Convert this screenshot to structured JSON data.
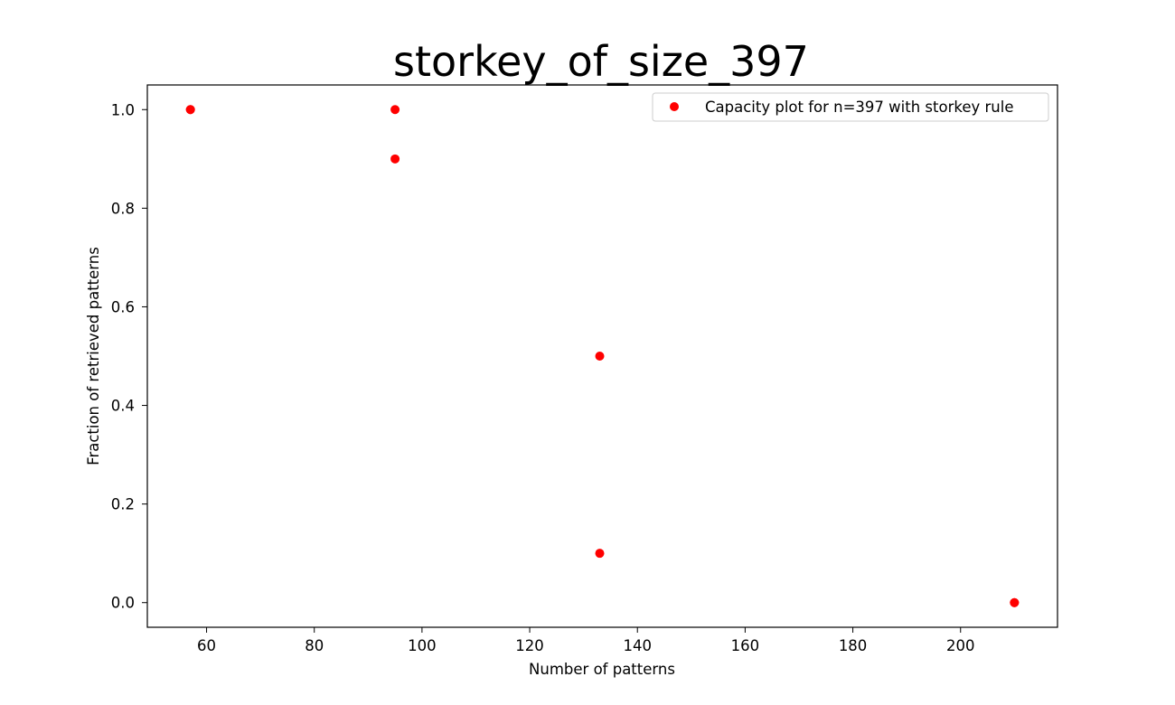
{
  "chart_data": {
    "type": "scatter",
    "title": "storkey_of_size_397",
    "xlabel": "Number of patterns",
    "ylabel": "Fraction of retrieved patterns",
    "xlim": [
      49,
      218
    ],
    "ylim": [
      -0.05,
      1.05
    ],
    "xticks": [
      60,
      80,
      100,
      120,
      140,
      160,
      180,
      200
    ],
    "yticks": [
      0.0,
      0.2,
      0.4,
      0.6,
      0.8,
      1.0
    ],
    "xtick_labels": [
      "60",
      "80",
      "100",
      "120",
      "140",
      "160",
      "180",
      "200"
    ],
    "ytick_labels": [
      "0.0",
      "0.2",
      "0.4",
      "0.6",
      "0.8",
      "1.0"
    ],
    "grid": false,
    "legend_position": "upper-right",
    "series": [
      {
        "name": "Capacity plot for n=397 with storkey rule",
        "color": "#ff0000",
        "marker": "circle",
        "x": [
          57,
          57,
          95,
          95,
          133,
          133,
          210,
          210
        ],
        "y": [
          1.0,
          1.0,
          1.0,
          0.9,
          0.5,
          0.1,
          0.0,
          0.0
        ]
      }
    ]
  }
}
